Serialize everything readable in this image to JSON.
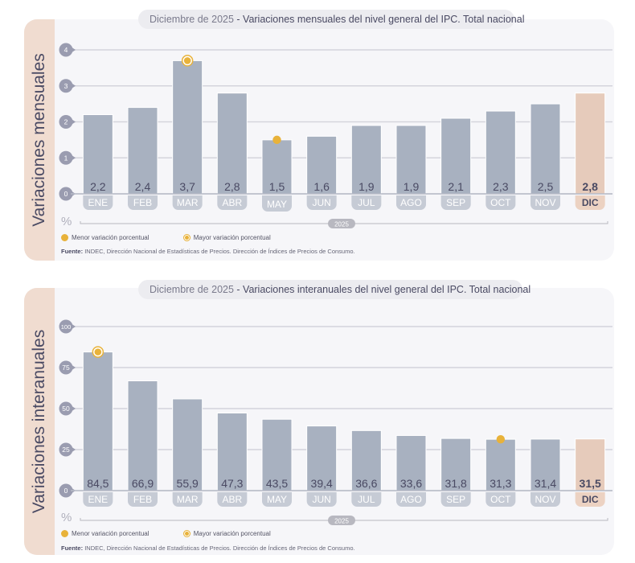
{
  "chart_data": [
    {
      "type": "bar",
      "title_prefix": "Diciembre de 2025",
      "title": "Variaciones mensuales del nivel general del IPC. Total nacional",
      "side_label": "Variaciones mensuales",
      "ylabel": "%",
      "year_label": "2025",
      "categories": [
        "ENE",
        "FEB",
        "MAR",
        "ABR",
        "MAY",
        "JUN",
        "JUL",
        "AGO",
        "SEP",
        "OCT",
        "NOV",
        "DIC"
      ],
      "values": [
        2.2,
        2.4,
        3.7,
        2.8,
        1.5,
        1.6,
        1.9,
        1.9,
        2.1,
        2.3,
        2.5,
        2.8
      ],
      "value_labels": [
        "2,2",
        "2,4",
        "3,7",
        "2,8",
        "1,5",
        "1,6",
        "1,9",
        "1,9",
        "2,1",
        "2,3",
        "2,5",
        "2,8"
      ],
      "yticks": [
        0,
        1,
        2,
        3,
        4
      ],
      "ylim": [
        0,
        4
      ],
      "highlight_index": 11,
      "min_marker_index": 4,
      "max_marker_index": 2,
      "grid": true
    },
    {
      "type": "bar",
      "title_prefix": "Diciembre de 2025",
      "title": "Variaciones interanuales del nivel general del IPC. Total nacional",
      "side_label": "Variaciones interanuales",
      "ylabel": "%",
      "year_label": "2025",
      "categories": [
        "ENE",
        "FEB",
        "MAR",
        "ABR",
        "MAY",
        "JUN",
        "JUL",
        "AGO",
        "SEP",
        "OCT",
        "NOV",
        "DIC"
      ],
      "values": [
        84.5,
        66.9,
        55.9,
        47.3,
        43.5,
        39.4,
        36.6,
        33.6,
        31.8,
        31.3,
        31.4,
        31.5
      ],
      "value_labels": [
        "84,5",
        "66,9",
        "55,9",
        "47,3",
        "43,5",
        "39,4",
        "36,6",
        "33,6",
        "31,8",
        "31,3",
        "31,4",
        "31,5"
      ],
      "yticks": [
        0,
        25,
        50,
        75,
        100
      ],
      "ylim": [
        0,
        100
      ],
      "highlight_index": 11,
      "min_marker_index": 9,
      "max_marker_index": 0,
      "grid": true
    }
  ],
  "legend": {
    "min_label": "Menor variación porcentual",
    "max_label": "Mayor variación porcentual"
  },
  "source": {
    "label": "Fuente:",
    "text": "INDEC, Dirección Nacional de Estadísticas de Precios. Dirección de Índices de Precios de Consumo."
  },
  "colors": {
    "bar": "#a8b1c0",
    "bar_highlight": "#e6cbbb",
    "month_pill": "#c6cbd5",
    "month_pill_highlight": "#ecd2c2",
    "marker": "#e8b23a",
    "axis_text": "#4a4a63"
  }
}
